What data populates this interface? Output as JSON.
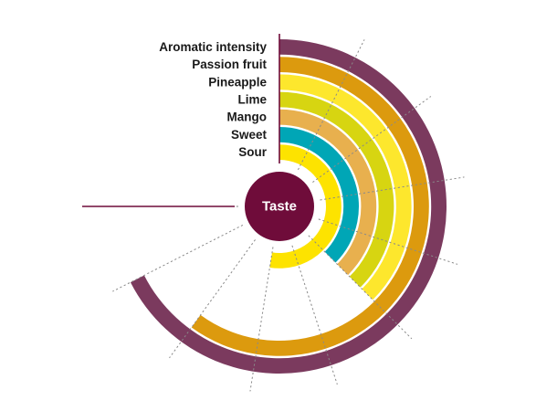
{
  "chart_data": {
    "type": "radial-bar",
    "center_label": "Taste",
    "series": [
      {
        "name": "Aromatic intensity",
        "value": 9,
        "color": "#7b3a5e"
      },
      {
        "name": "Passion fruit",
        "value": 8,
        "color": "#dc9a0e"
      },
      {
        "name": "Pineapple",
        "value": 5,
        "color": "#fde72d"
      },
      {
        "name": "Lime",
        "value": 5,
        "color": "#d7d511"
      },
      {
        "name": "Mango",
        "value": 5,
        "color": "#e8b04e"
      },
      {
        "name": "Sweet",
        "value": 5,
        "color": "#00a6b6"
      },
      {
        "name": "Sour",
        "value": 7,
        "color": "#fde300"
      }
    ],
    "scale": {
      "min": 0,
      "max": 10
    },
    "colors": {
      "center": "#6f0c3a",
      "axis": "#6f0c3a",
      "dashed": "#8a8a8a"
    }
  }
}
